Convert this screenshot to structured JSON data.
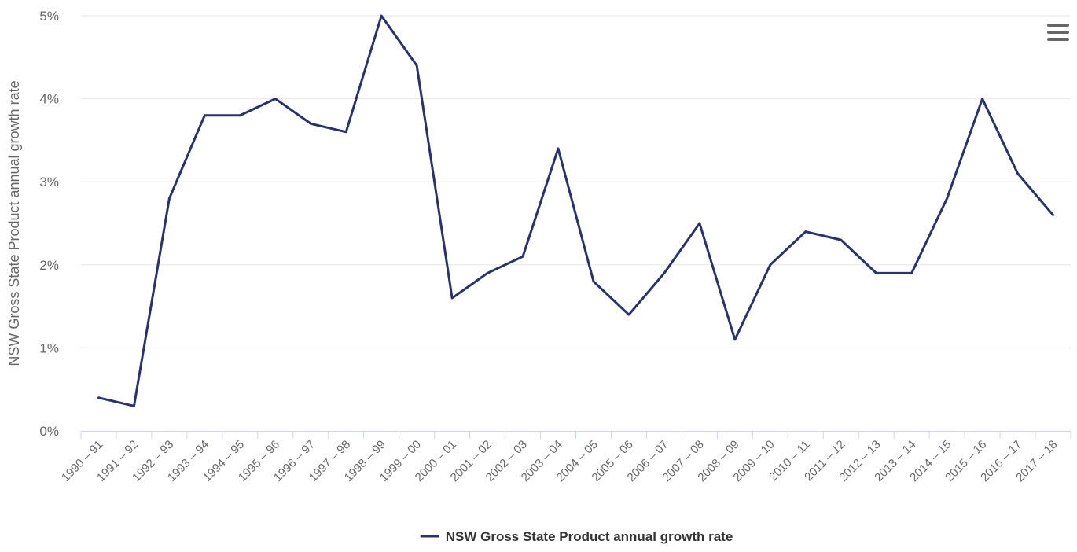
{
  "chart_data": {
    "type": "line",
    "title": "",
    "xlabel": "",
    "ylabel": "NSW Gross State Product annual growth rate",
    "ylim": [
      0,
      5
    ],
    "y_ticks": [
      "0%",
      "1%",
      "2%",
      "3%",
      "4%",
      "5%"
    ],
    "grid": "horizontal",
    "legend_position": "bottom-center",
    "categories": [
      "1990 – 91",
      "1991 – 92",
      "1992 – 93",
      "1993 – 94",
      "1994 – 95",
      "1995 – 96",
      "1996 – 97",
      "1997 – 98",
      "1998 – 99",
      "1999 – 00",
      "2000 – 01",
      "2001 – 02",
      "2002 – 03",
      "2003 – 04",
      "2004 – 05",
      "2005 – 06",
      "2006 – 07",
      "2007 – 08",
      "2008 – 09",
      "2009 – 10",
      "2010 – 11",
      "2011 – 12",
      "2012 – 13",
      "2013 – 14",
      "2014 – 15",
      "2015 – 16",
      "2016 – 17",
      "2017 – 18"
    ],
    "series": [
      {
        "name": "NSW Gross State Product annual growth rate",
        "color": "#2b3070",
        "values": [
          0.4,
          0.3,
          2.8,
          3.8,
          3.8,
          4.0,
          3.7,
          3.6,
          5.0,
          4.4,
          1.6,
          1.9,
          2.1,
          3.4,
          1.8,
          1.4,
          1.9,
          2.5,
          1.1,
          2.0,
          2.4,
          2.3,
          1.9,
          1.9,
          2.8,
          4.0,
          3.1,
          2.6
        ]
      }
    ]
  },
  "menu": {
    "icon": "hamburger-menu-icon"
  }
}
